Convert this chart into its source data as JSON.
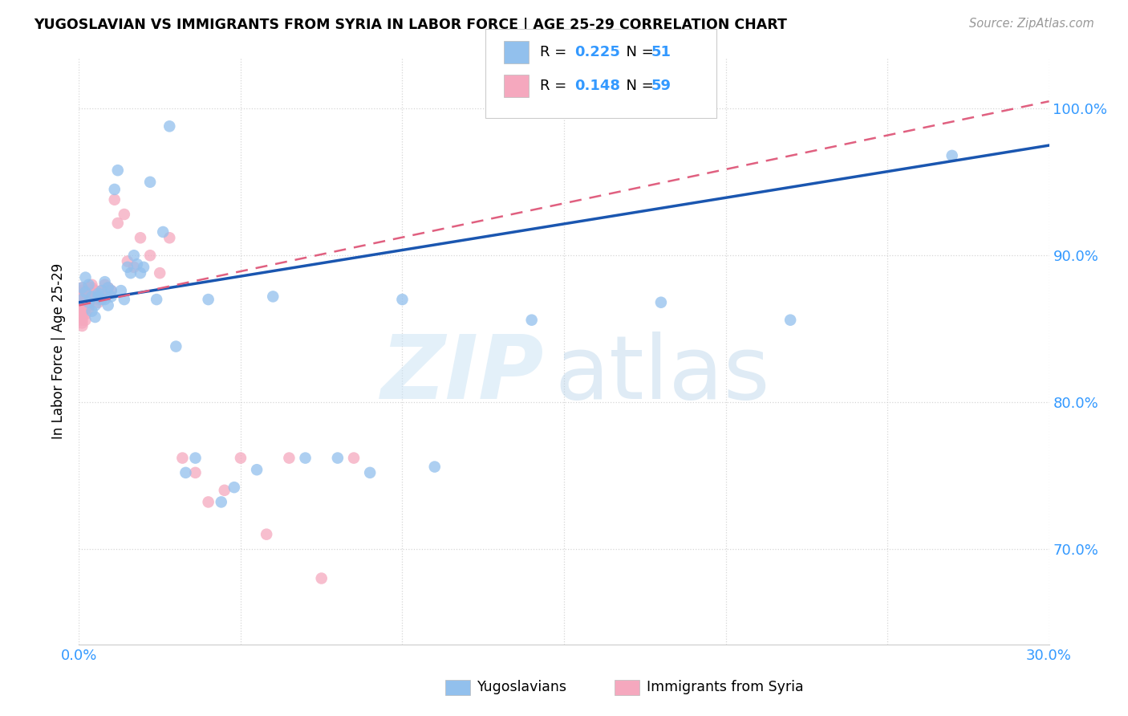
{
  "title": "YUGOSLAVIAN VS IMMIGRANTS FROM SYRIA IN LABOR FORCE | AGE 25-29 CORRELATION CHART",
  "source": "Source: ZipAtlas.com",
  "ylabel": "In Labor Force | Age 25-29",
  "xlim": [
    0.0,
    0.3
  ],
  "ylim": [
    0.635,
    1.035
  ],
  "xticks": [
    0.0,
    0.05,
    0.1,
    0.15,
    0.2,
    0.25,
    0.3
  ],
  "xticklabels": [
    "0.0%",
    "",
    "",
    "",
    "",
    "",
    "30.0%"
  ],
  "yticks": [
    0.7,
    0.8,
    0.9,
    1.0
  ],
  "yticklabels": [
    "70.0%",
    "80.0%",
    "90.0%",
    "100.0%"
  ],
  "blue_color": "#92c0ed",
  "pink_color": "#f5a8be",
  "trend_blue_color": "#1a56b0",
  "trend_pink_color": "#e06080",
  "blue_r": "0.225",
  "blue_n": "51",
  "pink_r": "0.148",
  "pink_n": "59",
  "accent_color": "#3399ff",
  "blue_x": [
    0.001,
    0.001,
    0.002,
    0.002,
    0.003,
    0.003,
    0.004,
    0.004,
    0.005,
    0.005,
    0.006,
    0.006,
    0.007,
    0.007,
    0.008,
    0.008,
    0.009,
    0.009,
    0.01,
    0.01,
    0.011,
    0.012,
    0.013,
    0.014,
    0.015,
    0.016,
    0.017,
    0.018,
    0.019,
    0.02,
    0.022,
    0.024,
    0.026,
    0.028,
    0.03,
    0.033,
    0.036,
    0.04,
    0.044,
    0.048,
    0.055,
    0.06,
    0.07,
    0.08,
    0.09,
    0.1,
    0.11,
    0.14,
    0.18,
    0.22,
    0.27
  ],
  "blue_y": [
    0.87,
    0.878,
    0.885,
    0.875,
    0.868,
    0.88,
    0.862,
    0.872,
    0.858,
    0.866,
    0.872,
    0.874,
    0.87,
    0.876,
    0.882,
    0.87,
    0.878,
    0.866,
    0.872,
    0.876,
    0.945,
    0.958,
    0.876,
    0.87,
    0.892,
    0.888,
    0.9,
    0.894,
    0.888,
    0.892,
    0.95,
    0.87,
    0.916,
    0.988,
    0.838,
    0.752,
    0.762,
    0.87,
    0.732,
    0.742,
    0.754,
    0.872,
    0.762,
    0.762,
    0.752,
    0.87,
    0.756,
    0.856,
    0.868,
    0.856,
    0.968
  ],
  "pink_x": [
    0.001,
    0.001,
    0.001,
    0.001,
    0.001,
    0.001,
    0.001,
    0.001,
    0.001,
    0.001,
    0.001,
    0.001,
    0.001,
    0.001,
    0.002,
    0.002,
    0.002,
    0.002,
    0.002,
    0.002,
    0.002,
    0.002,
    0.003,
    0.003,
    0.003,
    0.003,
    0.003,
    0.003,
    0.003,
    0.004,
    0.004,
    0.004,
    0.005,
    0.005,
    0.006,
    0.006,
    0.007,
    0.007,
    0.008,
    0.009,
    0.01,
    0.011,
    0.012,
    0.014,
    0.015,
    0.017,
    0.019,
    0.022,
    0.025,
    0.028,
    0.032,
    0.036,
    0.04,
    0.045,
    0.05,
    0.058,
    0.065,
    0.075,
    0.085
  ],
  "pink_y": [
    0.87,
    0.868,
    0.866,
    0.862,
    0.874,
    0.872,
    0.876,
    0.878,
    0.864,
    0.858,
    0.86,
    0.856,
    0.854,
    0.852,
    0.87,
    0.866,
    0.872,
    0.874,
    0.868,
    0.864,
    0.86,
    0.856,
    0.87,
    0.874,
    0.878,
    0.864,
    0.866,
    0.87,
    0.872,
    0.874,
    0.878,
    0.88,
    0.876,
    0.872,
    0.87,
    0.868,
    0.872,
    0.876,
    0.88,
    0.878,
    0.876,
    0.938,
    0.922,
    0.928,
    0.896,
    0.892,
    0.912,
    0.9,
    0.888,
    0.912,
    0.762,
    0.752,
    0.732,
    0.74,
    0.762,
    0.71,
    0.762,
    0.68,
    0.762
  ]
}
